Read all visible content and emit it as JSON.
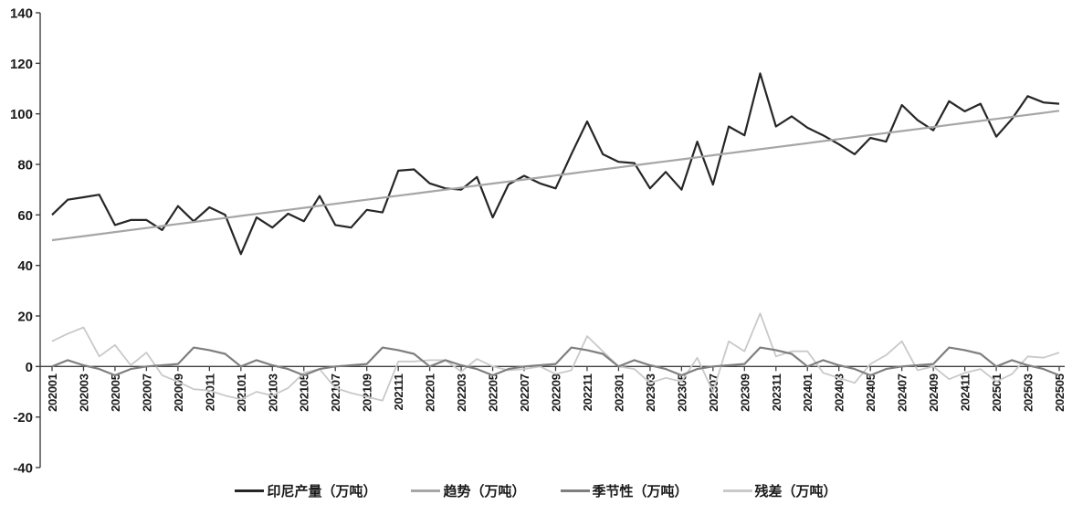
{
  "chart_data": {
    "type": "line",
    "title": "",
    "xlabel": "",
    "ylabel": "",
    "ylim": [
      -40,
      140
    ],
    "y_tick_step": 20,
    "x_tick_step": 2,
    "grid": false,
    "legend_position": "bottom",
    "categories": [
      "202001",
      "202002",
      "202003",
      "202004",
      "202005",
      "202006",
      "202007",
      "202008",
      "202009",
      "202010",
      "202011",
      "202012",
      "202101",
      "202102",
      "202103",
      "202104",
      "202105",
      "202106",
      "202107",
      "202108",
      "202109",
      "202110",
      "202111",
      "202112",
      "202201",
      "202202",
      "202203",
      "202204",
      "202205",
      "202206",
      "202207",
      "202208",
      "202209",
      "202210",
      "202211",
      "202212",
      "202301",
      "202302",
      "202303",
      "202304",
      "202305",
      "202306",
      "202307",
      "202308",
      "202309",
      "202310",
      "202311",
      "202312",
      "202401",
      "202402",
      "202403",
      "202404",
      "202405",
      "202406",
      "202407",
      "202408",
      "202409",
      "202410",
      "202411",
      "202412",
      "202501",
      "202502",
      "202503",
      "202504",
      "202505"
    ],
    "series": [
      {
        "key": "production",
        "name": "印尼产量（万吨）",
        "color": "#262626",
        "width": 2.2,
        "values": [
          60,
          66,
          67,
          68,
          56,
          58,
          58,
          54,
          63.5,
          57.5,
          63,
          60,
          44.5,
          59,
          55,
          60.5,
          57.5,
          67.5,
          56,
          55,
          62,
          61,
          77.5,
          78,
          72.5,
          70.5,
          70,
          75,
          59,
          72,
          75.5,
          72.5,
          70.5,
          84,
          97,
          84,
          81,
          80.5,
          70.5,
          77,
          70,
          89,
          72,
          95,
          91.5,
          116,
          95,
          99,
          94.5,
          91.5,
          88,
          84,
          90.5,
          89,
          103.5,
          97.5,
          93.5,
          105,
          101,
          104,
          91,
          98,
          107,
          104.5,
          104
        ]
      },
      {
        "key": "trend",
        "name": "趋势（万吨）",
        "color": "#a6a6a6",
        "width": 2.2,
        "values": [
          50,
          50.8,
          51.6,
          52.4,
          53.2,
          54,
          54.8,
          55.6,
          56.4,
          57.2,
          58,
          58.8,
          59.6,
          60.4,
          61.2,
          62,
          62.8,
          63.6,
          64.4,
          65.2,
          66,
          66.8,
          67.6,
          68.4,
          69.2,
          70,
          70.8,
          71.6,
          72.4,
          73.2,
          74,
          74.8,
          75.6,
          76.4,
          77.2,
          78,
          78.8,
          79.6,
          80.4,
          81.2,
          82,
          82.8,
          83.6,
          84.4,
          85.2,
          86,
          86.8,
          87.6,
          88.4,
          89.2,
          90,
          90.8,
          91.6,
          92.4,
          93.2,
          94,
          94.8,
          95.6,
          96.4,
          97.2,
          98,
          98.8,
          99.6,
          100.4,
          101.2
        ]
      },
      {
        "key": "seasonality",
        "name": "季节性（万吨）",
        "color": "#7f7f7f",
        "width": 2.2,
        "values": [
          0,
          2.5,
          0.5,
          -1,
          -3.5,
          -1,
          0,
          0.5,
          1,
          7.5,
          6.5,
          5,
          0,
          2.5,
          0.5,
          -1,
          -3.5,
          -1,
          0,
          0.5,
          1,
          7.5,
          6.5,
          5,
          0,
          2.5,
          0.5,
          -1,
          -3.5,
          -1,
          0,
          0.5,
          1,
          7.5,
          6.5,
          5,
          0,
          2.5,
          0.5,
          -1,
          -3.5,
          -1,
          0,
          0.5,
          1,
          7.5,
          6.5,
          5,
          0,
          2.5,
          0.5,
          -1,
          -3.5,
          -1,
          0,
          0.5,
          1,
          7.5,
          6.5,
          5,
          0,
          2.5,
          0.5,
          -1,
          -3.5
        ]
      },
      {
        "key": "residual",
        "name": "残差（万吨）",
        "color": "#c9c9c9",
        "width": 1.8,
        "values": [
          10,
          13,
          15.5,
          4,
          8.5,
          0.5,
          5.5,
          -3.5,
          -6,
          -9,
          -9.5,
          -11.5,
          -13,
          -10,
          -11.5,
          -8.5,
          -2.5,
          -1,
          -8.5,
          -10.5,
          -12,
          -13.5,
          2,
          2,
          2.5,
          2.5,
          -2,
          3,
          0,
          -1.5,
          -1,
          0,
          -3,
          -1.5,
          12,
          6,
          0,
          -1,
          -6.5,
          -4.5,
          -6,
          3.5,
          -10,
          10,
          6,
          21,
          4,
          6,
          6,
          -2.5,
          -4.5,
          -6.5,
          1,
          4.5,
          10,
          -1.5,
          0,
          -5,
          -2.5,
          -1,
          -6,
          -3,
          4,
          3.5,
          5.5
        ]
      }
    ],
    "axis_color": "#404040",
    "text_color": "#1a1a1a"
  }
}
